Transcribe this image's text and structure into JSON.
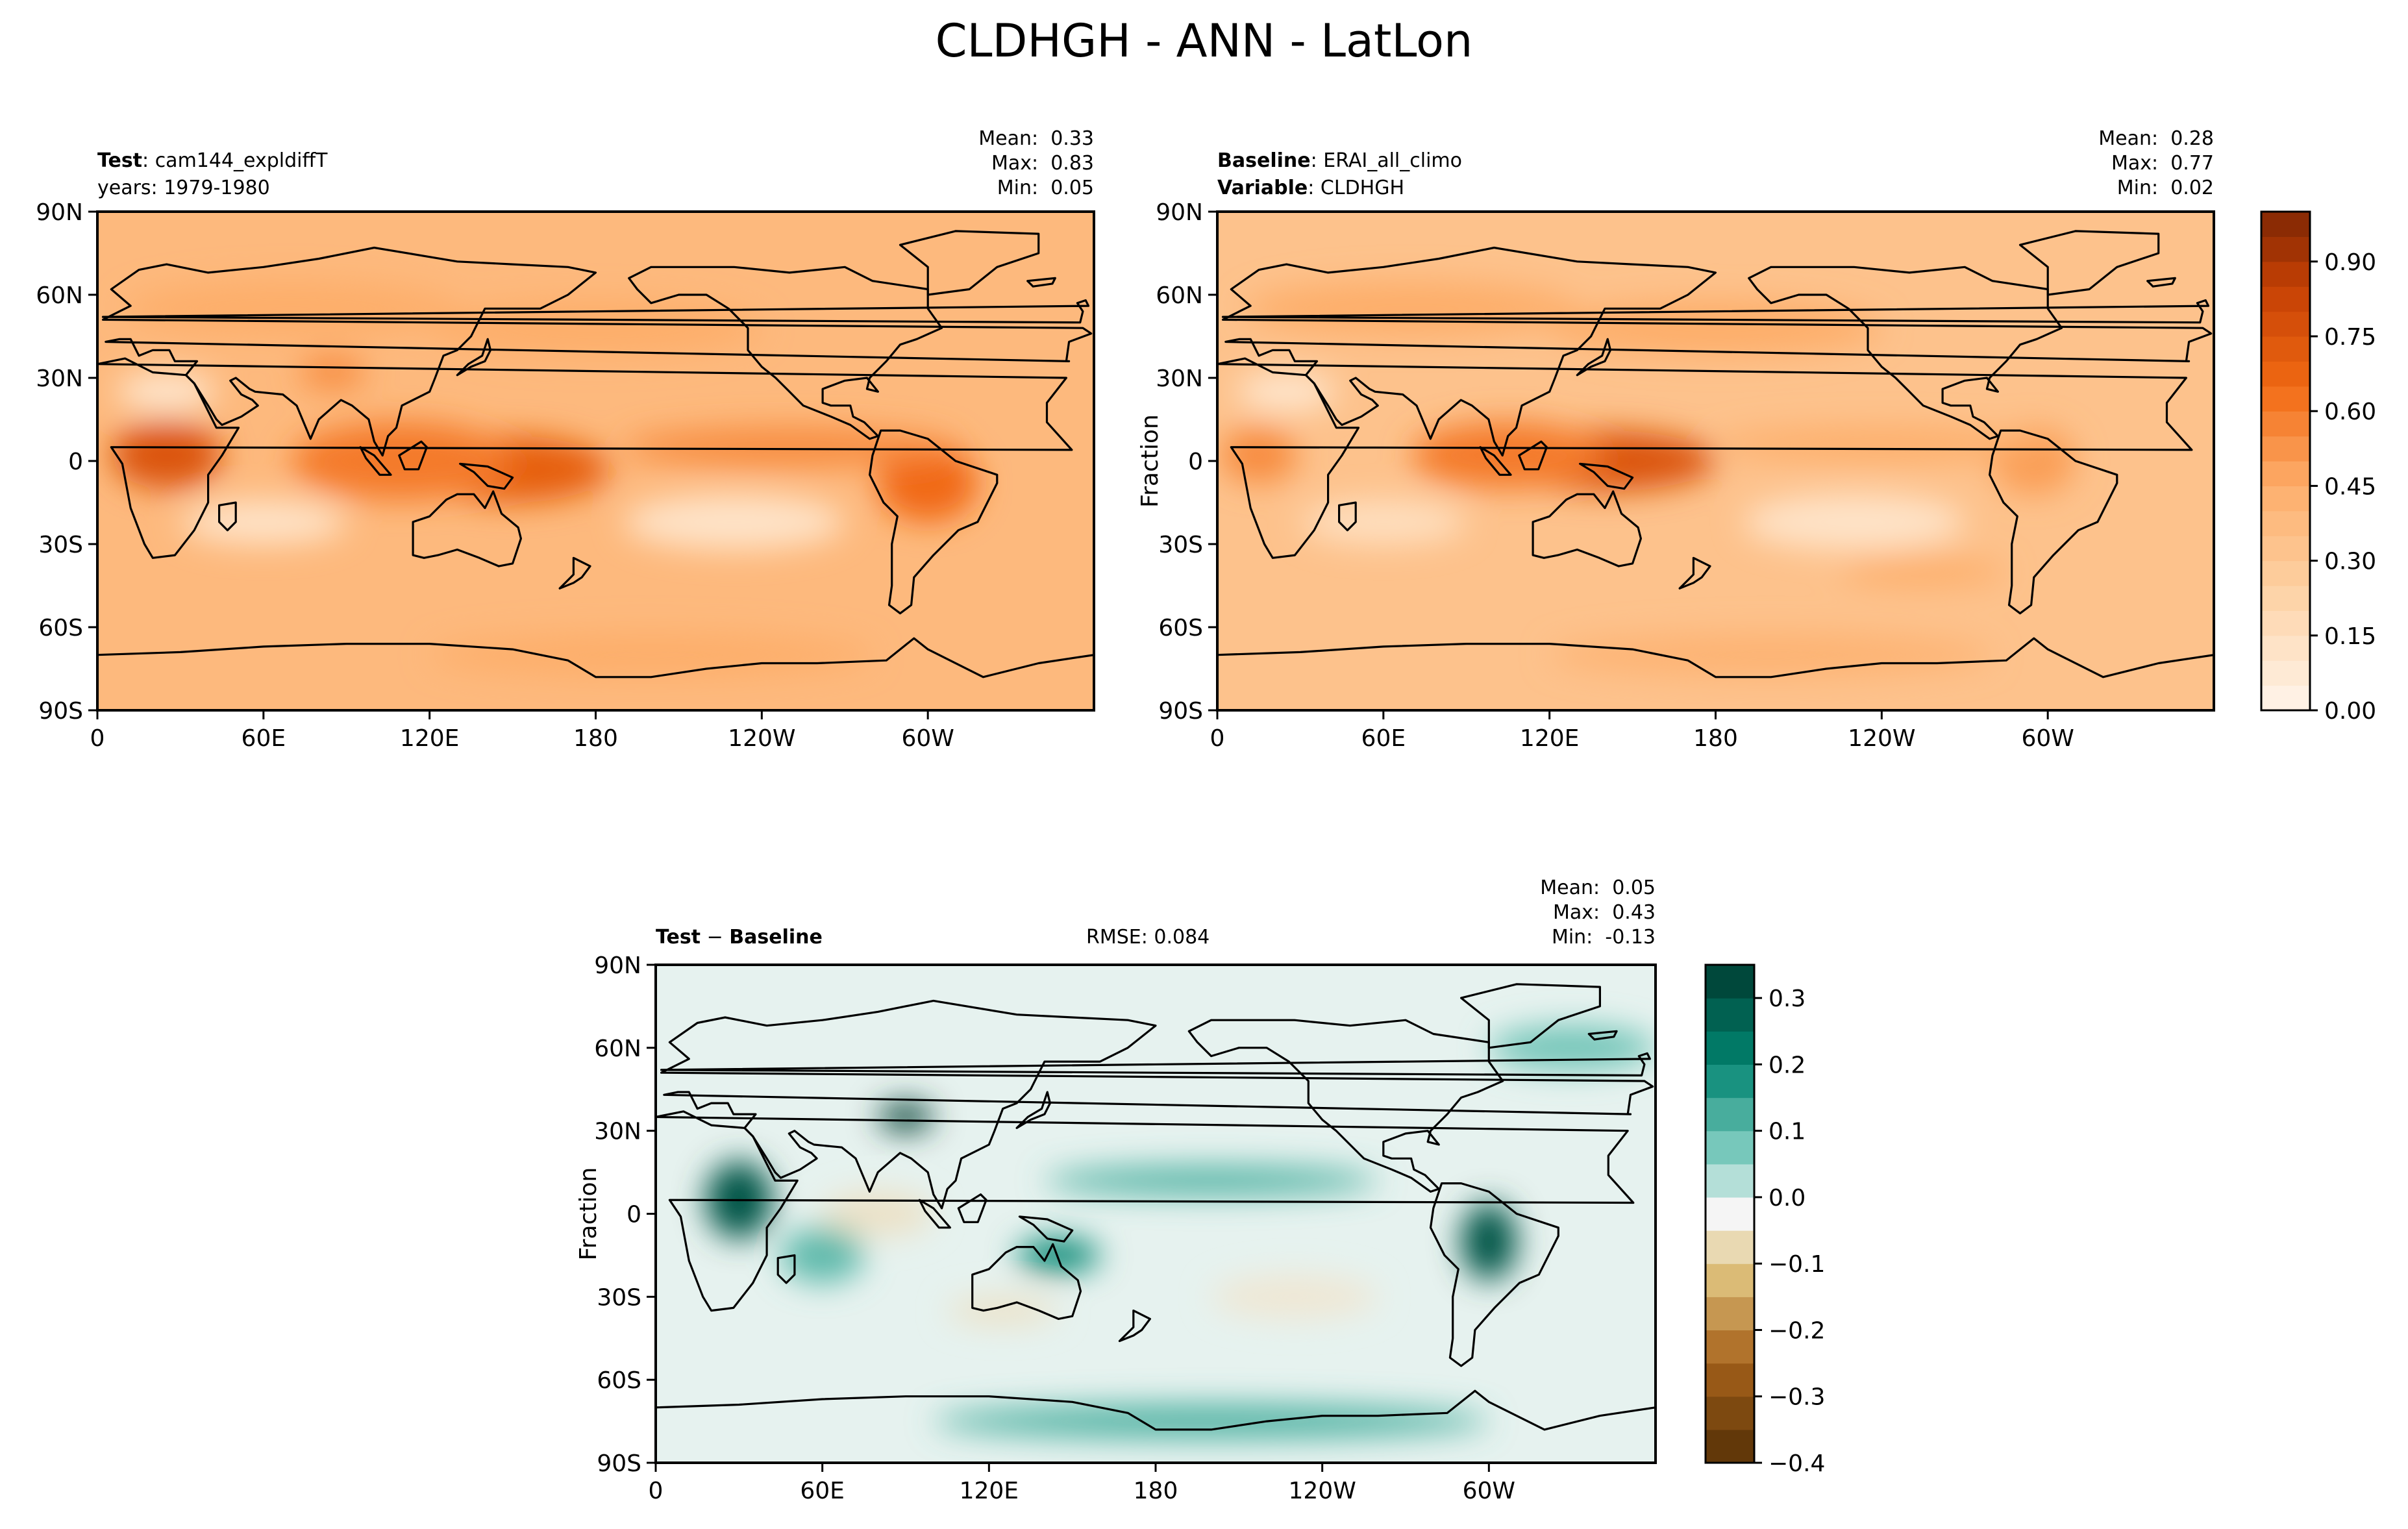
{
  "title": "CLDHGH - ANN - LatLon",
  "chart_data": [
    {
      "type": "heatmap",
      "panel": "test",
      "name_label": "Test",
      "name_value": "cam144_expldiffT",
      "sub_label": "years: 1979-1980",
      "stats": {
        "mean_label": "Mean:",
        "mean": "0.33",
        "max_label": "Max:",
        "max": "0.83",
        "min_label": "Min:",
        "min": "0.05"
      },
      "xticks": [
        "0",
        "60E",
        "120E",
        "180",
        "120W",
        "60W"
      ],
      "yticks": [
        "90N",
        "60N",
        "30N",
        "0",
        "30S",
        "60S",
        "90S"
      ],
      "xlim": [
        0,
        360
      ],
      "ylim": [
        -90,
        90
      ],
      "ylabel": "",
      "colormap": "Oranges",
      "range": [
        0.0,
        1.0
      ],
      "features": [
        {
          "lon": 25,
          "lat": 2,
          "value": 0.75,
          "wlon": 20,
          "wlat": 12
        },
        {
          "lon": 150,
          "lat": -3,
          "value": 0.7,
          "wlon": 35,
          "wlat": 12
        },
        {
          "lon": 110,
          "lat": 0,
          "value": 0.6,
          "wlon": 40,
          "wlat": 14
        },
        {
          "lon": 300,
          "lat": -8,
          "value": 0.65,
          "wlon": 18,
          "wlat": 14
        },
        {
          "lon": 250,
          "lat": 5,
          "value": 0.55,
          "wlon": 60,
          "wlat": 7
        },
        {
          "lon": 85,
          "lat": 32,
          "value": 0.55,
          "wlon": 12,
          "wlat": 6
        },
        {
          "lon": 70,
          "lat": 55,
          "value": 0.45,
          "wlon": 60,
          "wlat": 10
        },
        {
          "lon": 180,
          "lat": 48,
          "value": 0.45,
          "wlon": 60,
          "wlat": 10
        },
        {
          "lon": 200,
          "lat": -70,
          "value": 0.45,
          "wlon": 80,
          "wlat": 8
        },
        {
          "lon": 230,
          "lat": -22,
          "value": 0.12,
          "wlon": 40,
          "wlat": 10
        },
        {
          "lon": 60,
          "lat": -22,
          "value": 0.12,
          "wlon": 30,
          "wlat": 8
        },
        {
          "lon": 25,
          "lat": 25,
          "value": 0.1,
          "wlon": 18,
          "wlat": 7
        }
      ]
    },
    {
      "type": "heatmap",
      "panel": "baseline",
      "name_label": "Baseline",
      "name_value": "ERAI_all_climo",
      "var_label": "Variable",
      "var_value": "CLDHGH",
      "stats": {
        "mean_label": "Mean:",
        "mean": "0.28",
        "max_label": "Max:",
        "max": "0.77",
        "min_label": "Min:",
        "min": "0.02"
      },
      "xticks": [
        "0",
        "60E",
        "120E",
        "180",
        "120W",
        "60W"
      ],
      "yticks": [
        "90N",
        "60N",
        "30N",
        "0",
        "30S",
        "60S",
        "90S"
      ],
      "xlim": [
        0,
        360
      ],
      "ylim": [
        -90,
        90
      ],
      "ylabel": "Fraction",
      "colormap": "Oranges",
      "range": [
        0.0,
        1.0
      ],
      "colorbar_ticks": [
        "0.90",
        "0.75",
        "0.60",
        "0.45",
        "0.30",
        "0.15",
        "0.00"
      ],
      "colorbar_values": [
        0.9,
        0.75,
        0.6,
        0.45,
        0.3,
        0.15,
        0.0
      ],
      "features": [
        {
          "lon": 15,
          "lat": 2,
          "value": 0.55,
          "wlon": 14,
          "wlat": 10
        },
        {
          "lon": 140,
          "lat": 0,
          "value": 0.75,
          "wlon": 40,
          "wlat": 11
        },
        {
          "lon": 105,
          "lat": 2,
          "value": 0.6,
          "wlon": 35,
          "wlat": 12
        },
        {
          "lon": 295,
          "lat": 0,
          "value": 0.5,
          "wlon": 15,
          "wlat": 12
        },
        {
          "lon": 240,
          "lat": 6,
          "value": 0.45,
          "wlon": 60,
          "wlat": 6
        },
        {
          "lon": 70,
          "lat": 55,
          "value": 0.45,
          "wlon": 60,
          "wlat": 10
        },
        {
          "lon": 180,
          "lat": 48,
          "value": 0.45,
          "wlon": 60,
          "wlat": 10
        },
        {
          "lon": 200,
          "lat": -70,
          "value": 0.42,
          "wlon": 80,
          "wlat": 8
        },
        {
          "lon": 230,
          "lat": -22,
          "value": 0.12,
          "wlon": 40,
          "wlat": 10
        },
        {
          "lon": 60,
          "lat": -22,
          "value": 0.15,
          "wlon": 30,
          "wlat": 8
        },
        {
          "lon": 25,
          "lat": 25,
          "value": 0.1,
          "wlon": 18,
          "wlat": 7
        },
        {
          "lon": 255,
          "lat": -40,
          "value": 0.45,
          "wlon": 30,
          "wlat": 5
        }
      ]
    },
    {
      "type": "heatmap",
      "panel": "difference",
      "name_label": "Test",
      "name_sep": " − ",
      "name_label2": "Baseline",
      "rmse": "RMSE: 0.084",
      "stats": {
        "mean_label": "Mean:",
        "mean": "0.05",
        "max_label": "Max:",
        "max": "0.43",
        "min_label": "Min:",
        "min": "-0.13"
      },
      "xticks": [
        "0",
        "60E",
        "120E",
        "180",
        "120W",
        "60W"
      ],
      "yticks": [
        "90N",
        "60N",
        "30N",
        "0",
        "30S",
        "60S",
        "90S"
      ],
      "xlim": [
        0,
        360
      ],
      "ylim": [
        -90,
        90
      ],
      "ylabel": "Fraction",
      "colormap": "BrBG",
      "range": [
        -0.4,
        0.35
      ],
      "colorbar_ticks": [
        "0.3",
        "0.2",
        "0.1",
        "0.0",
        "−0.1",
        "−0.2",
        "−0.3",
        "−0.4"
      ],
      "colorbar_values": [
        0.3,
        0.2,
        0.1,
        0.0,
        -0.1,
        -0.2,
        -0.3,
        -0.4
      ],
      "features": [
        {
          "lon": 30,
          "lat": 5,
          "value": 0.3,
          "wlon": 12,
          "wlat": 14
        },
        {
          "lon": 90,
          "lat": 35,
          "value": 0.35,
          "wlon": 10,
          "wlat": 5
        },
        {
          "lon": 300,
          "lat": -10,
          "value": 0.3,
          "wlon": 10,
          "wlat": 14
        },
        {
          "lon": 145,
          "lat": -15,
          "value": 0.2,
          "wlon": 15,
          "wlat": 6
        },
        {
          "lon": 200,
          "lat": 12,
          "value": 0.12,
          "wlon": 60,
          "wlat": 5
        },
        {
          "lon": 200,
          "lat": -75,
          "value": 0.12,
          "wlon": 100,
          "wlat": 6
        },
        {
          "lon": 80,
          "lat": 0,
          "value": -0.06,
          "wlon": 20,
          "wlat": 8
        },
        {
          "lon": 230,
          "lat": -30,
          "value": -0.05,
          "wlon": 30,
          "wlat": 8
        },
        {
          "lon": 125,
          "lat": -35,
          "value": -0.06,
          "wlon": 20,
          "wlat": 5
        },
        {
          "lon": 60,
          "lat": -15,
          "value": 0.1,
          "wlon": 15,
          "wlat": 10
        },
        {
          "lon": 330,
          "lat": 60,
          "value": 0.08,
          "wlon": 30,
          "wlat": 8
        }
      ]
    }
  ]
}
